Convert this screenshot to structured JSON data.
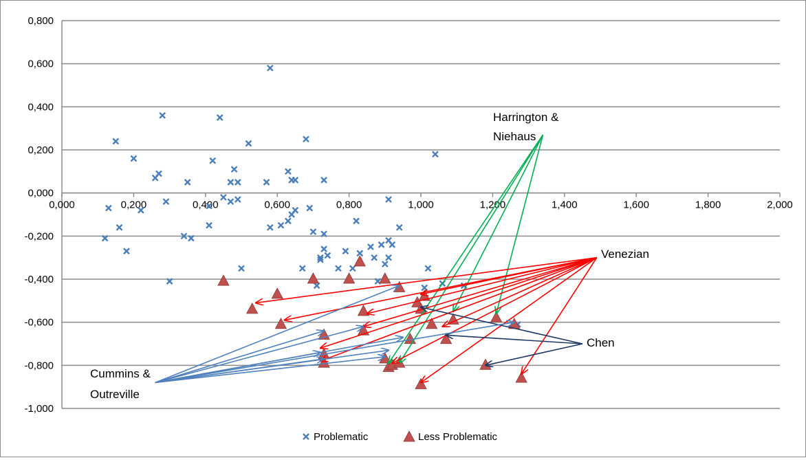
{
  "chart_data": {
    "type": "scatter",
    "title": "",
    "xlabel": "",
    "ylabel": "",
    "xlim": [
      0,
      2
    ],
    "ylim": [
      -1,
      0.8
    ],
    "x_ticks": [
      0,
      0.2,
      0.4,
      0.6,
      0.8,
      1.0,
      1.2,
      1.4,
      1.6,
      1.8,
      2.0
    ],
    "y_ticks": [
      0.8,
      0.6,
      0.4,
      0.2,
      0.0,
      -0.2,
      -0.4,
      -0.6,
      -0.8,
      -1.0
    ],
    "x_tick_labels": [
      "0,000",
      "0,200",
      "0,400",
      "0,600",
      "0,800",
      "1,000",
      "1,200",
      "1,400",
      "1,600",
      "1,800",
      "2,000"
    ],
    "y_tick_labels": [
      "0,800",
      "0,600",
      "0,400",
      "0,200",
      "0,000",
      "-0,200",
      "-0,400",
      "-0,600",
      "-0,800",
      "-1,000"
    ],
    "grid": "horizontal",
    "legend_position": "bottom",
    "legend": [
      "Problematic",
      "Less Problematic"
    ],
    "series": [
      {
        "name": "Problematic",
        "marker": "x",
        "color": "#4a7ebb",
        "points": [
          [
            0.13,
            -0.07
          ],
          [
            0.15,
            0.24
          ],
          [
            0.16,
            -0.16
          ],
          [
            0.12,
            -0.21
          ],
          [
            0.18,
            -0.27
          ],
          [
            0.2,
            0.16
          ],
          [
            0.22,
            -0.08
          ],
          [
            0.26,
            0.07
          ],
          [
            0.27,
            0.09
          ],
          [
            0.28,
            0.36
          ],
          [
            0.29,
            -0.04
          ],
          [
            0.3,
            -0.41
          ],
          [
            0.34,
            -0.2
          ],
          [
            0.35,
            0.05
          ],
          [
            0.36,
            -0.21
          ],
          [
            0.41,
            -0.06
          ],
          [
            0.41,
            -0.15
          ],
          [
            0.42,
            0.15
          ],
          [
            0.44,
            0.35
          ],
          [
            0.45,
            -0.02
          ],
          [
            0.47,
            0.05
          ],
          [
            0.47,
            -0.04
          ],
          [
            0.48,
            0.11
          ],
          [
            0.49,
            -0.03
          ],
          [
            0.49,
            0.05
          ],
          [
            0.5,
            -0.35
          ],
          [
            0.52,
            0.23
          ],
          [
            0.57,
            0.05
          ],
          [
            0.58,
            -0.16
          ],
          [
            0.58,
            0.58
          ],
          [
            0.61,
            -0.15
          ],
          [
            0.63,
            -0.13
          ],
          [
            0.63,
            0.1
          ],
          [
            0.64,
            -0.1
          ],
          [
            0.64,
            0.06
          ],
          [
            0.65,
            -0.08
          ],
          [
            0.65,
            0.06
          ],
          [
            0.67,
            -0.35
          ],
          [
            0.68,
            0.25
          ],
          [
            0.69,
            -0.07
          ],
          [
            0.7,
            -0.18
          ],
          [
            0.71,
            -0.43
          ],
          [
            0.72,
            -0.3
          ],
          [
            0.72,
            -0.31
          ],
          [
            0.73,
            -0.19
          ],
          [
            0.73,
            -0.26
          ],
          [
            0.73,
            0.06
          ],
          [
            0.74,
            -0.29
          ],
          [
            0.77,
            -0.35
          ],
          [
            0.79,
            -0.27
          ],
          [
            0.81,
            -0.35
          ],
          [
            0.82,
            -0.13
          ],
          [
            0.83,
            -0.28
          ],
          [
            0.86,
            -0.25
          ],
          [
            0.87,
            -0.3
          ],
          [
            0.88,
            -0.41
          ],
          [
            0.89,
            -0.24
          ],
          [
            0.9,
            -0.33
          ],
          [
            0.91,
            -0.3
          ],
          [
            0.91,
            -0.22
          ],
          [
            0.91,
            -0.03
          ],
          [
            0.92,
            -0.24
          ],
          [
            0.94,
            -0.16
          ],
          [
            1.01,
            -0.44
          ],
          [
            1.02,
            -0.35
          ],
          [
            1.04,
            0.18
          ],
          [
            1.06,
            -0.42
          ],
          [
            1.12,
            -0.43
          ],
          [
            1.27,
            -0.61
          ]
        ]
      },
      {
        "name": "Less Problematic",
        "marker": "triangle",
        "color": "#c0504d",
        "points": [
          [
            0.45,
            -0.41
          ],
          [
            0.53,
            -0.54
          ],
          [
            0.6,
            -0.47
          ],
          [
            0.61,
            -0.61
          ],
          [
            0.7,
            -0.4
          ],
          [
            0.73,
            -0.66
          ],
          [
            0.73,
            -0.75
          ],
          [
            0.73,
            -0.79
          ],
          [
            0.8,
            -0.4
          ],
          [
            0.83,
            -0.32
          ],
          [
            0.84,
            -0.55
          ],
          [
            0.84,
            -0.64
          ],
          [
            0.9,
            -0.4
          ],
          [
            0.9,
            -0.77
          ],
          [
            0.91,
            -0.81
          ],
          [
            0.92,
            -0.8
          ],
          [
            0.94,
            -0.44
          ],
          [
            0.94,
            -0.79
          ],
          [
            0.97,
            -0.68
          ],
          [
            0.99,
            -0.51
          ],
          [
            1.0,
            -0.54
          ],
          [
            1.0,
            -0.89
          ],
          [
            1.01,
            -0.48
          ],
          [
            1.03,
            -0.61
          ],
          [
            1.07,
            -0.68
          ],
          [
            1.09,
            -0.59
          ],
          [
            1.18,
            -0.8
          ],
          [
            1.21,
            -0.58
          ],
          [
            1.26,
            -0.61
          ],
          [
            1.28,
            -0.86
          ]
        ]
      }
    ],
    "annotations": [
      {
        "lines": [
          "Harrington &",
          "Niehaus"
        ],
        "color": "#00b050",
        "from": [
          1.34,
          0.27
        ],
        "targets": [
          [
            1.09,
            -0.55
          ],
          [
            1.21,
            -0.56
          ],
          [
            0.94,
            -0.79
          ],
          [
            0.91,
            -0.79
          ]
        ]
      },
      {
        "lines": [
          "Venezian"
        ],
        "color": "#ff0000",
        "from": [
          1.49,
          -0.3
        ],
        "targets": [
          [
            0.54,
            -0.51
          ],
          [
            0.62,
            -0.59
          ],
          [
            0.72,
            -0.72
          ],
          [
            0.72,
            -0.78
          ],
          [
            0.85,
            -0.56
          ],
          [
            0.84,
            -0.62
          ],
          [
            0.92,
            -0.79
          ],
          [
            1.0,
            -0.47
          ],
          [
            1.0,
            -0.88
          ],
          [
            1.06,
            -0.62
          ],
          [
            1.28,
            -0.84
          ]
        ]
      },
      {
        "lines": [
          "Chen"
        ],
        "color": "#1f3864",
        "from": [
          1.45,
          -0.7
        ],
        "targets": [
          [
            1.0,
            -0.53
          ],
          [
            1.07,
            -0.66
          ],
          [
            1.18,
            -0.8
          ]
        ]
      },
      {
        "lines": [
          "Cummins &",
          "Outreville"
        ],
        "color": "#4f81bd",
        "from": [
          0.26,
          -0.88
        ],
        "targets": [
          [
            0.94,
            -0.43
          ],
          [
            0.73,
            -0.64
          ],
          [
            0.84,
            -0.62
          ],
          [
            0.95,
            -0.67
          ],
          [
            0.72,
            -0.74
          ],
          [
            0.91,
            -0.73
          ],
          [
            0.9,
            -0.76
          ],
          [
            0.73,
            -0.77
          ],
          [
            1.26,
            -0.6
          ]
        ]
      }
    ]
  }
}
